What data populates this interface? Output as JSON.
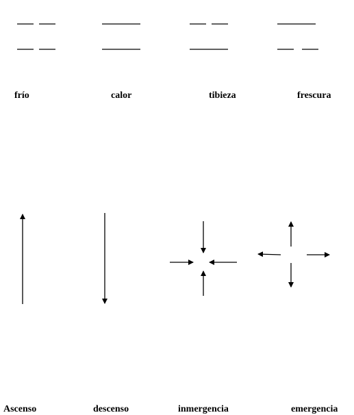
{
  "top_row": {
    "symbols": [
      {
        "id": "frio",
        "label": "frío",
        "pattern": {
          "upper": "broken",
          "lower": "broken"
        }
      },
      {
        "id": "calor",
        "label": "calor",
        "pattern": {
          "upper": "solid",
          "lower": "solid"
        }
      },
      {
        "id": "tibieza",
        "label": "tibieza",
        "pattern": {
          "upper": "broken",
          "lower": "solid"
        }
      },
      {
        "id": "frescura",
        "label": "frescura",
        "pattern": {
          "upper": "solid",
          "lower": "broken"
        }
      }
    ]
  },
  "bottom_row": {
    "symbols": [
      {
        "id": "ascenso",
        "label": "Ascenso",
        "arrows": [
          "up"
        ]
      },
      {
        "id": "descenso",
        "label": "descenso",
        "arrows": [
          "down"
        ]
      },
      {
        "id": "inmergencia",
        "label": "inmergencia",
        "arrows": [
          "inward-from-top",
          "inward-from-left",
          "inward-from-right",
          "inward-from-bottom"
        ]
      },
      {
        "id": "emergencia",
        "label": "emergencia",
        "arrows": [
          "outward-up",
          "outward-left",
          "outward-right",
          "outward-down"
        ]
      }
    ]
  },
  "colors": {
    "ink": "#000000",
    "background": "#ffffff"
  }
}
